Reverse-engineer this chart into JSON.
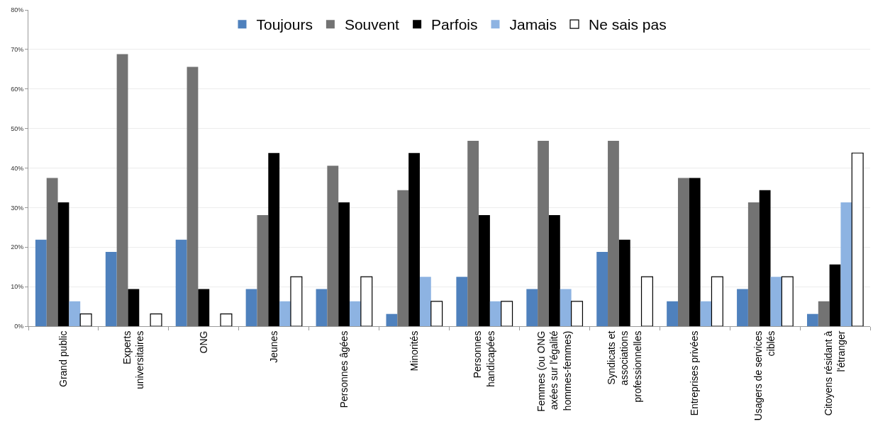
{
  "chart_data": {
    "type": "bar",
    "categories": [
      "Grand public",
      "Experts\nuniversitaires",
      "ONG",
      "Jeunes",
      "Personnes âgées",
      "Minorités",
      "Personnes\nhandicapées",
      "Femmes (ou ONG\naxées sur l'égalité\nhommes-femmes)",
      "Syndicats et\nassociations\nprofessionnelles",
      "Entreprises privées",
      "Usagers de services\nciblés",
      "Citoyens résidant à\nl'étranger"
    ],
    "series": [
      {
        "name": "Toujours",
        "color": "#4f81bd",
        "values": [
          21.9,
          18.8,
          21.9,
          9.4,
          9.4,
          3.1,
          12.5,
          9.4,
          18.8,
          6.3,
          9.4,
          3.1
        ]
      },
      {
        "name": "Souvent",
        "color": "#737373",
        "values": [
          37.5,
          68.8,
          65.6,
          28.1,
          40.6,
          34.4,
          46.9,
          46.9,
          46.9,
          37.5,
          31.3,
          6.3
        ]
      },
      {
        "name": "Parfois",
        "color": "#000000",
        "values": [
          31.3,
          9.4,
          9.4,
          43.8,
          31.3,
          43.8,
          28.1,
          28.1,
          21.9,
          37.5,
          34.4,
          15.6
        ]
      },
      {
        "name": "Jamais",
        "color": "#8db3e2",
        "values": [
          6.3,
          0,
          0,
          6.3,
          6.3,
          12.5,
          6.3,
          9.4,
          0,
          6.3,
          12.5,
          31.3
        ]
      },
      {
        "name": "Ne sais pas",
        "color": "#ffffff",
        "values": [
          3.1,
          3.1,
          3.1,
          12.5,
          12.5,
          6.3,
          6.3,
          6.3,
          12.5,
          12.5,
          12.5,
          43.8
        ]
      }
    ],
    "ylim": [
      0,
      80
    ],
    "yticks": [
      {
        "value": 0,
        "label": "0%"
      },
      {
        "value": 10,
        "label": "10%"
      },
      {
        "value": 20,
        "label": "20%"
      },
      {
        "value": 30,
        "label": "30%"
      },
      {
        "value": 40,
        "label": "40%"
      },
      {
        "value": 50,
        "label": "50%"
      },
      {
        "value": 60,
        "label": "60%"
      },
      {
        "value": 70,
        "label": "70%"
      },
      {
        "value": 80,
        "label": "80%"
      }
    ],
    "grid": "y",
    "legend": "top"
  }
}
